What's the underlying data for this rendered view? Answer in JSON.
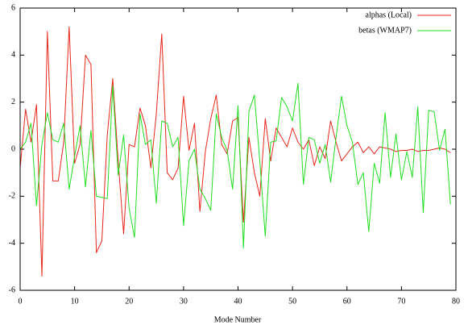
{
  "chart_data": {
    "type": "line",
    "xlabel": "Mode Number",
    "x": [
      0,
      1,
      2,
      3,
      4,
      5,
      6,
      7,
      8,
      9,
      10,
      11,
      12,
      13,
      14,
      15,
      16,
      17,
      18,
      19,
      20,
      21,
      22,
      23,
      24,
      25,
      26,
      27,
      28,
      29,
      30,
      31,
      32,
      33,
      34,
      35,
      36,
      37,
      38,
      39,
      40,
      41,
      42,
      43,
      44,
      45,
      46,
      47,
      48,
      49,
      50,
      51,
      52,
      53,
      54,
      55,
      56,
      57,
      58,
      59,
      60,
      61,
      62,
      63,
      64,
      65,
      66,
      67,
      68,
      69,
      70,
      71,
      72,
      73,
      74,
      75,
      76,
      77,
      78,
      79
    ],
    "series": [
      {
        "name": "alphas (Local)",
        "color": "#e8261c",
        "values": [
          -0.8,
          1.7,
          0.3,
          1.9,
          -5.4,
          5.0,
          -1.35,
          -1.35,
          0.3,
          5.2,
          -0.6,
          0.2,
          4.0,
          3.6,
          -4.4,
          -3.9,
          0.6,
          3.0,
          -0.5,
          -3.6,
          0.2,
          0.1,
          1.75,
          1.0,
          -0.8,
          1.5,
          4.9,
          -1.0,
          -1.3,
          -0.8,
          2.25,
          -0.05,
          1.1,
          -2.65,
          -0.1,
          1.3,
          2.3,
          0.2,
          -0.2,
          1.2,
          1.35,
          -3.1,
          0.5,
          -1.0,
          -2.0,
          1.3,
          -0.5,
          0.9,
          0.5,
          0.1,
          0.9,
          0.3,
          0.0,
          0.4,
          -0.7,
          0.1,
          -0.4,
          1.2,
          0.3,
          -0.5,
          -0.2,
          0.1,
          0.3,
          -0.15,
          0.1,
          -0.2,
          0.1,
          0.05,
          0.0,
          -0.1,
          -0.05,
          -0.05,
          0.0,
          -0.1,
          -0.05,
          -0.05,
          0.0,
          0.05,
          0.0,
          -0.15
        ]
      },
      {
        "name": "betas (WMAP7)",
        "color": "#22dd22",
        "values": [
          0,
          0.3,
          1.1,
          -2.4,
          0.2,
          1.55,
          0.4,
          0.3,
          1.1,
          -1.7,
          -0.3,
          1.0,
          -1.6,
          0.8,
          -2.0,
          -2.05,
          -2.1,
          2.7,
          -1.1,
          0.6,
          -2.5,
          -3.75,
          1.5,
          0.2,
          0.4,
          -2.3,
          1.2,
          1.1,
          0.1,
          0.5,
          -3.25,
          -0.5,
          0.0,
          -1.7,
          -2.1,
          -2.6,
          1.5,
          0.5,
          -0.05,
          -1.7,
          1.85,
          -4.2,
          1.6,
          2.3,
          -0.5,
          -3.7,
          0.3,
          0.35,
          2.2,
          1.8,
          1.2,
          2.8,
          -1.5,
          0.5,
          0.4,
          -0.6,
          0.2,
          -1.4,
          0.5,
          2.25,
          1.0,
          0.3,
          -1.5,
          -1.0,
          -3.5,
          -0.6,
          -1.45,
          1.55,
          -1.2,
          0.65,
          -1.3,
          -0.1,
          -1.2,
          1.8,
          -2.7,
          1.65,
          1.6,
          -0.05,
          0.85,
          -2.35
        ]
      }
    ],
    "xlim": [
      0,
      80
    ],
    "xticks": [
      0,
      10,
      20,
      30,
      40,
      50,
      60,
      70,
      80
    ],
    "ylim": [
      -6,
      6
    ],
    "yticks": [
      -6,
      -4,
      -2,
      0,
      2,
      4,
      6
    ],
    "legend": "upper right",
    "grid": false
  }
}
